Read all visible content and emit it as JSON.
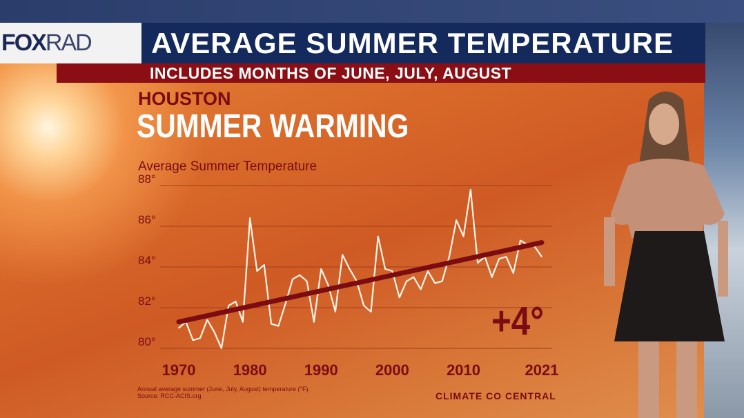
{
  "header": {
    "logo": "FOXRAD",
    "title": "AVERAGE SUMMER TEMPERATURE",
    "subtitle": "INCLUDES MONTHS OF JUNE, JULY, AUGUST"
  },
  "graphic": {
    "city": "HOUSTON",
    "headline": "SUMMER WARMING",
    "delta": "+4°",
    "note_line1": "Annual average summer (June, July, August) temperature (°F).",
    "note_line2": "Source: RCC-ACIS.org",
    "brand": "CLIMATE CO CENTRAL"
  },
  "colors": {
    "accent": "#7a0c12",
    "line": "#fff4e8",
    "trend": "#7a0c12",
    "header_blue": "#14295c",
    "header_red": "#8a0e14"
  },
  "chart_data": {
    "type": "line",
    "title": "Average Summer Temperature",
    "xlabel": "",
    "ylabel": "",
    "ylim": [
      80,
      88
    ],
    "xlim": [
      1970,
      2021
    ],
    "yticks": [
      "80°",
      "82°",
      "84°",
      "86°",
      "88°"
    ],
    "xticks": [
      "1970",
      "1980",
      "1990",
      "2000",
      "2010",
      "2021"
    ],
    "grid": true,
    "x": [
      1970,
      1971,
      1972,
      1973,
      1974,
      1975,
      1976,
      1977,
      1978,
      1979,
      1980,
      1981,
      1982,
      1983,
      1984,
      1985,
      1986,
      1987,
      1988,
      1989,
      1990,
      1991,
      1992,
      1993,
      1994,
      1995,
      1996,
      1997,
      1998,
      1999,
      2000,
      2001,
      2002,
      2003,
      2004,
      2005,
      2006,
      2007,
      2008,
      2009,
      2010,
      2011,
      2012,
      2013,
      2014,
      2015,
      2016,
      2017,
      2018,
      2019,
      2020,
      2021
    ],
    "series": [
      {
        "values": [
          81.0,
          81.3,
          80.4,
          80.5,
          81.4,
          80.8,
          80.0,
          82.1,
          82.3,
          81.3,
          86.4,
          83.8,
          84.1,
          81.2,
          81.1,
          82.2,
          83.4,
          83.6,
          83.3,
          81.3,
          83.9,
          83.1,
          81.8,
          84.6,
          83.9,
          83.3,
          82.1,
          81.8,
          85.5,
          83.9,
          83.8,
          82.5,
          83.3,
          83.5,
          82.9,
          83.8,
          83.2,
          83.3,
          84.5,
          86.3,
          85.5,
          87.8,
          84.2,
          84.5,
          83.5,
          84.4,
          84.5,
          83.7,
          85.3,
          85.1,
          85.0,
          84.5
        ]
      }
    ],
    "trend": {
      "x": [
        1970,
        2021
      ],
      "values": [
        81.3,
        85.2
      ]
    }
  }
}
